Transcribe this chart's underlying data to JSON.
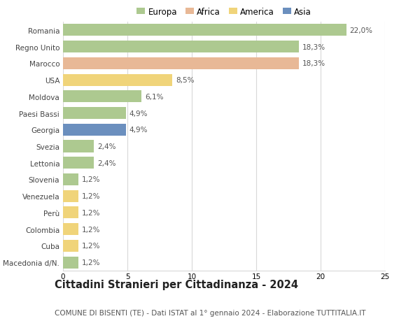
{
  "countries": [
    "Romania",
    "Regno Unito",
    "Marocco",
    "USA",
    "Moldova",
    "Paesi Bassi",
    "Georgia",
    "Svezia",
    "Lettonia",
    "Slovenia",
    "Venezuela",
    "Perù",
    "Colombia",
    "Cuba",
    "Macedonia d/N."
  ],
  "values": [
    22.0,
    18.3,
    18.3,
    8.5,
    6.1,
    4.9,
    4.9,
    2.4,
    2.4,
    1.2,
    1.2,
    1.2,
    1.2,
    1.2,
    1.2
  ],
  "labels": [
    "22,0%",
    "18,3%",
    "18,3%",
    "8,5%",
    "6,1%",
    "4,9%",
    "4,9%",
    "2,4%",
    "2,4%",
    "1,2%",
    "1,2%",
    "1,2%",
    "1,2%",
    "1,2%",
    "1,2%"
  ],
  "continents": [
    "Europa",
    "Europa",
    "Africa",
    "America",
    "Europa",
    "Europa",
    "Asia",
    "Europa",
    "Europa",
    "Europa",
    "America",
    "America",
    "America",
    "America",
    "Europa"
  ],
  "continent_colors": {
    "Europa": "#adc990",
    "Africa": "#e8b896",
    "America": "#f0d47a",
    "Asia": "#6b8fbe"
  },
  "legend_items": [
    "Europa",
    "Africa",
    "America",
    "Asia"
  ],
  "legend_colors": [
    "#adc990",
    "#e8b896",
    "#f0d47a",
    "#6b8fbe"
  ],
  "xlim": [
    0,
    25
  ],
  "xticks": [
    0,
    5,
    10,
    15,
    20,
    25
  ],
  "title": "Cittadini Stranieri per Cittadinanza - 2024",
  "subtitle": "COMUNE DI BISENTI (TE) - Dati ISTAT al 1° gennaio 2024 - Elaborazione TUTTITALIA.IT",
  "bg_color": "#ffffff",
  "bar_height": 0.72,
  "grid_color": "#d8d8d8",
  "title_fontsize": 10.5,
  "subtitle_fontsize": 7.5,
  "label_fontsize": 7.5,
  "tick_fontsize": 7.5,
  "legend_fontsize": 8.5
}
